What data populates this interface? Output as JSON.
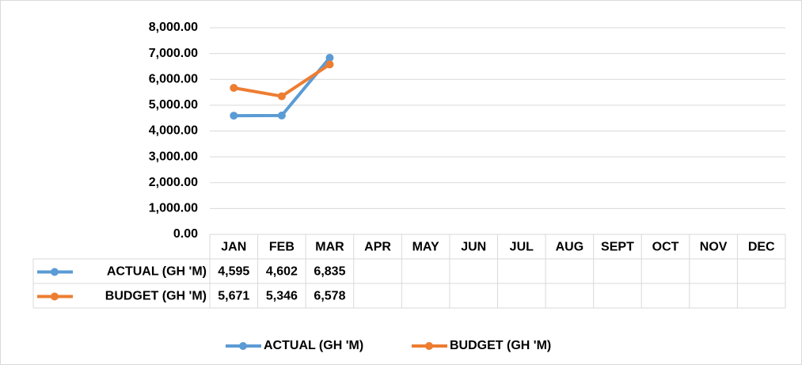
{
  "chart_data": {
    "type": "line",
    "categories": [
      "JAN",
      "FEB",
      "MAR",
      "APR",
      "MAY",
      "JUN",
      "JUL",
      "AUG",
      "SEPT",
      "OCT",
      "NOV",
      "DEC"
    ],
    "series": [
      {
        "name": "ACTUAL (GH 'M)",
        "color": "#5b9bd5",
        "values": [
          4595,
          4602,
          6835,
          null,
          null,
          null,
          null,
          null,
          null,
          null,
          null,
          null
        ],
        "value_labels": [
          "4,595",
          "4,602",
          "6,835",
          null,
          null,
          null,
          null,
          null,
          null,
          null,
          null,
          null
        ]
      },
      {
        "name": "BUDGET (GH 'M)",
        "color": "#ed7d31",
        "values": [
          5671,
          5346,
          6578,
          null,
          null,
          null,
          null,
          null,
          null,
          null,
          null,
          null
        ],
        "value_labels": [
          "5,671",
          "5,346",
          "6,578",
          null,
          null,
          null,
          null,
          null,
          null,
          null,
          null,
          null
        ]
      }
    ],
    "ylim": [
      0,
      8000
    ],
    "yticks": [
      {
        "value": 0,
        "label": "0.00"
      },
      {
        "value": 1000,
        "label": "1,000.00"
      },
      {
        "value": 2000,
        "label": "2,000.00"
      },
      {
        "value": 3000,
        "label": "3,000.00"
      },
      {
        "value": 4000,
        "label": "4,000.00"
      },
      {
        "value": 5000,
        "label": "5,000.00"
      },
      {
        "value": 6000,
        "label": "6,000.00"
      },
      {
        "value": 7000,
        "label": "7,000.00"
      },
      {
        "value": 8000,
        "label": "8,000.00"
      }
    ],
    "grid": true,
    "legend": "bottom",
    "data_table": true
  }
}
